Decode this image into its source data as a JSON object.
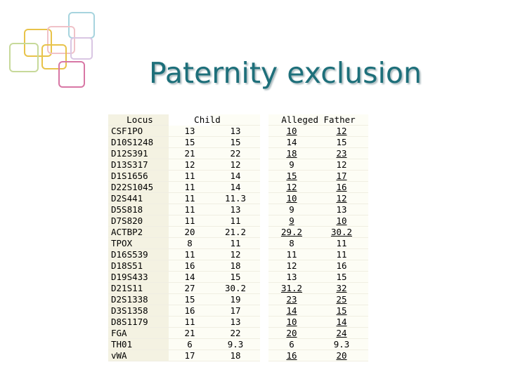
{
  "slide": {
    "title": "Paternity exclusion"
  },
  "decoration": {
    "colors": [
      "#e8c34a",
      "#f0c2c8",
      "#a7d4de",
      "#d9c6e3",
      "#c7d99a",
      "#d877a5",
      "#8fc8d3"
    ],
    "icon": "overlapping-rounded-squares-logo"
  },
  "table": {
    "header": {
      "locus": "Locus",
      "child": "Child",
      "father": "Alleged Father"
    },
    "underline_color": "#000000",
    "rows": [
      {
        "locus": "CSF1PO",
        "c1": "13",
        "c2": "13",
        "f1": "10",
        "f2": "12",
        "u1": true,
        "u2": true
      },
      {
        "locus": "D10S1248",
        "c1": "15",
        "c2": "15",
        "f1": "14",
        "f2": "15",
        "u1": false,
        "u2": false
      },
      {
        "locus": "D12S391",
        "c1": "21",
        "c2": "22",
        "f1": "18",
        "f2": "23",
        "u1": true,
        "u2": true
      },
      {
        "locus": "D13S317",
        "c1": "12",
        "c2": "12",
        "f1": "9",
        "f2": "12",
        "u1": false,
        "u2": false
      },
      {
        "locus": "D1S1656",
        "c1": "11",
        "c2": "14",
        "f1": "15",
        "f2": "17",
        "u1": true,
        "u2": true
      },
      {
        "locus": "D22S1045",
        "c1": "11",
        "c2": "14",
        "f1": "12",
        "f2": "16",
        "u1": true,
        "u2": true
      },
      {
        "locus": "D2S441",
        "c1": "11",
        "c2": "11.3",
        "f1": "10",
        "f2": "12",
        "u1": true,
        "u2": true
      },
      {
        "locus": "D5S818",
        "c1": "11",
        "c2": "13",
        "f1": "9",
        "f2": "13",
        "u1": false,
        "u2": false
      },
      {
        "locus": "D7S820",
        "c1": "11",
        "c2": "11",
        "f1": "9",
        "f2": "10",
        "u1": true,
        "u2": true
      },
      {
        "locus": "ACTBP2",
        "c1": "20",
        "c2": "21.2",
        "f1": "29.2",
        "f2": "30.2",
        "u1": true,
        "u2": true
      },
      {
        "locus": "TPOX",
        "c1": "8",
        "c2": "11",
        "f1": "8",
        "f2": "11",
        "u1": false,
        "u2": false
      },
      {
        "locus": "D16S539",
        "c1": "11",
        "c2": "12",
        "f1": "11",
        "f2": "11",
        "u1": false,
        "u2": false
      },
      {
        "locus": "D18S51",
        "c1": "16",
        "c2": "18",
        "f1": "12",
        "f2": "16",
        "u1": false,
        "u2": false
      },
      {
        "locus": "D19S433",
        "c1": "14",
        "c2": "15",
        "f1": "13",
        "f2": "15",
        "u1": false,
        "u2": false
      },
      {
        "locus": "D21S11",
        "c1": "27",
        "c2": "30.2",
        "f1": "31.2",
        "f2": "32",
        "u1": true,
        "u2": true
      },
      {
        "locus": "D2S1338",
        "c1": "15",
        "c2": "19",
        "f1": "23",
        "f2": "25",
        "u1": true,
        "u2": true
      },
      {
        "locus": "D3S1358",
        "c1": "16",
        "c2": "17",
        "f1": "14",
        "f2": "15",
        "u1": true,
        "u2": true
      },
      {
        "locus": "D8S1179",
        "c1": "11",
        "c2": "13",
        "f1": "10",
        "f2": "14",
        "u1": true,
        "u2": true
      },
      {
        "locus": "FGA",
        "c1": "21",
        "c2": "22",
        "f1": "20",
        "f2": "24",
        "u1": true,
        "u2": true
      },
      {
        "locus": "TH01",
        "c1": "6",
        "c2": "9.3",
        "f1": "6",
        "f2": "9.3",
        "u1": false,
        "u2": false
      },
      {
        "locus": "vWA",
        "c1": "17",
        "c2": "18",
        "f1": "16",
        "f2": "20",
        "u1": true,
        "u2": true
      }
    ]
  }
}
